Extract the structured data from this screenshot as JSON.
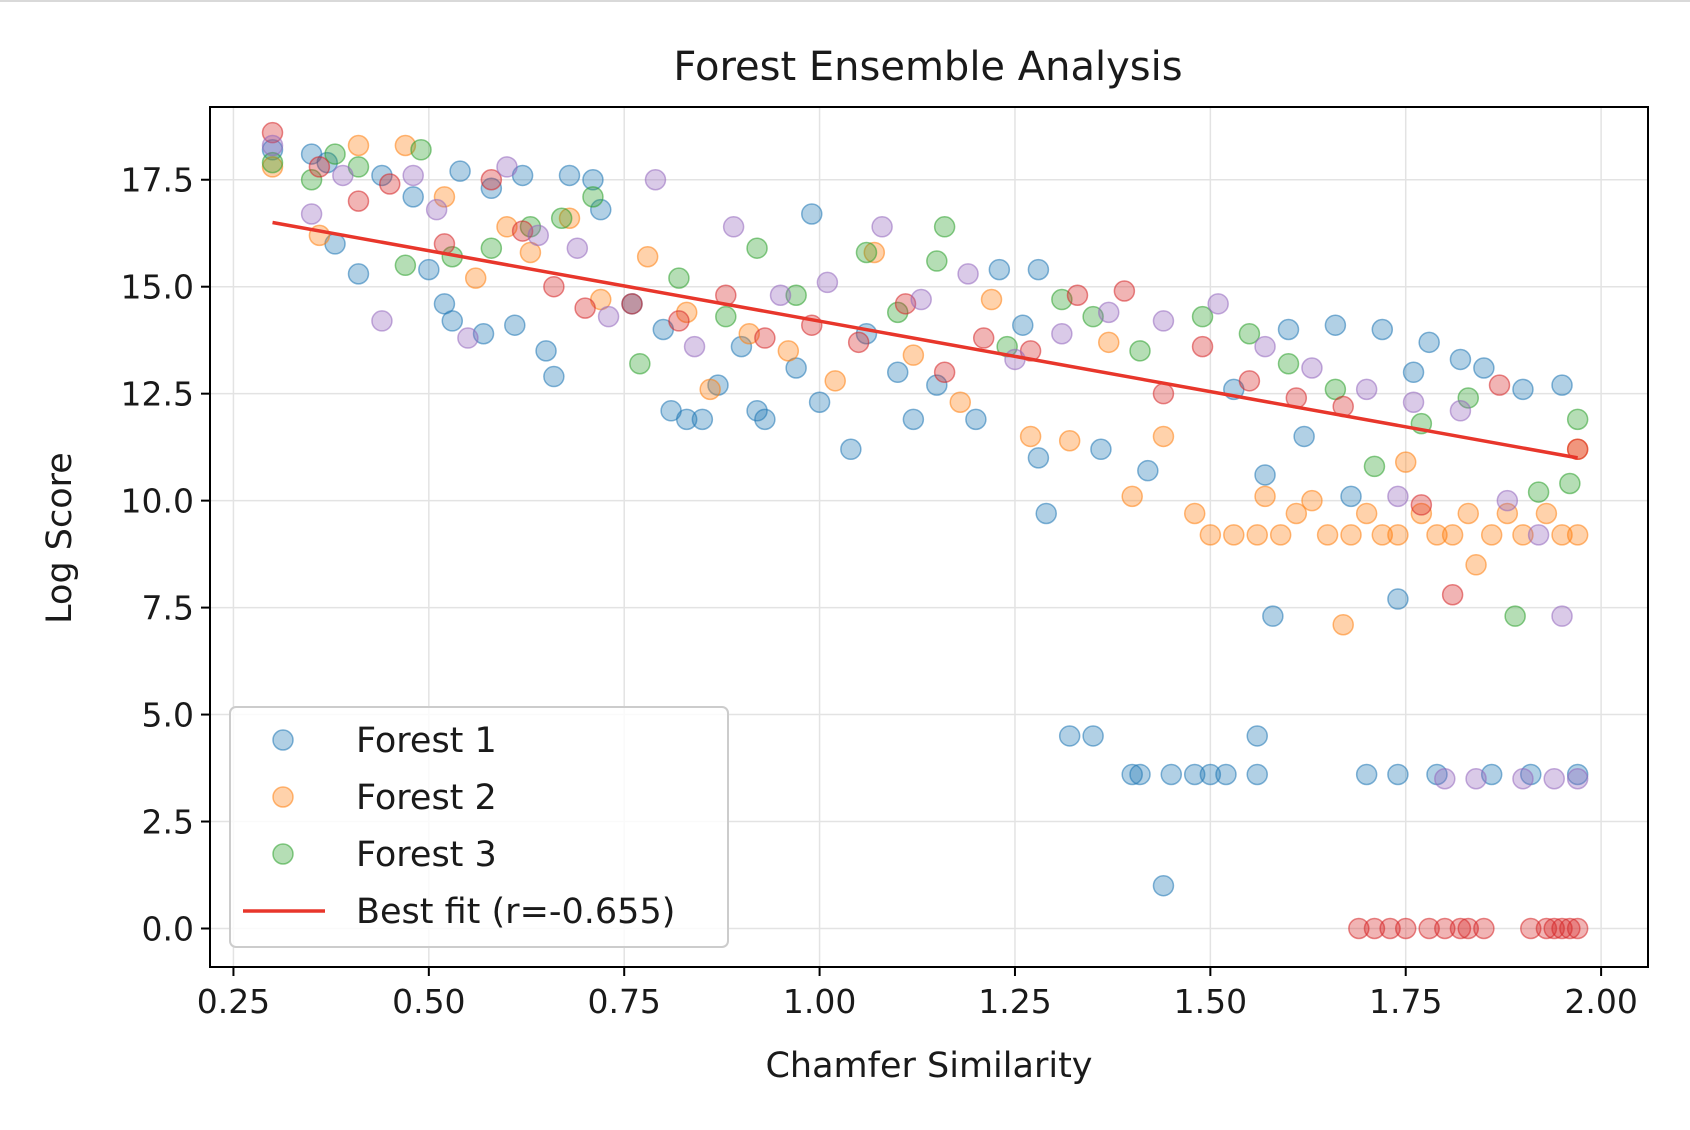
{
  "chart_data": {
    "type": "scatter",
    "title": "Forest Ensemble Analysis",
    "xlabel": "Chamfer Similarity",
    "ylabel": "Log Score",
    "xlim": [
      0.22,
      2.06
    ],
    "ylim": [
      -0.9,
      19.2
    ],
    "x_ticks": [
      0.25,
      0.5,
      0.75,
      1.0,
      1.25,
      1.5,
      1.75,
      2.0
    ],
    "x_tick_labels": [
      "0.25",
      "0.50",
      "0.75",
      "1.00",
      "1.25",
      "1.50",
      "1.75",
      "2.00"
    ],
    "y_ticks": [
      0.0,
      2.5,
      5.0,
      7.5,
      10.0,
      12.5,
      15.0,
      17.5
    ],
    "y_tick_labels": [
      "0.0",
      "2.5",
      "5.0",
      "7.5",
      "10.0",
      "12.5",
      "15.0",
      "17.5"
    ],
    "grid": true,
    "legend_position": "lower-left",
    "marker_alpha": 0.35,
    "series": [
      {
        "name": "Forest 1",
        "color": "#1f77b4",
        "points": [
          [
            0.3,
            18.2
          ],
          [
            0.35,
            18.1
          ],
          [
            0.37,
            17.9
          ],
          [
            0.38,
            16.0
          ],
          [
            0.41,
            15.3
          ],
          [
            0.44,
            17.6
          ],
          [
            0.48,
            17.1
          ],
          [
            0.5,
            15.4
          ],
          [
            0.52,
            14.6
          ],
          [
            0.53,
            14.2
          ],
          [
            0.54,
            17.7
          ],
          [
            0.57,
            13.9
          ],
          [
            0.58,
            17.3
          ],
          [
            0.61,
            14.1
          ],
          [
            0.62,
            17.6
          ],
          [
            0.65,
            13.5
          ],
          [
            0.66,
            12.9
          ],
          [
            0.68,
            17.6
          ],
          [
            0.71,
            17.5
          ],
          [
            0.72,
            16.8
          ],
          [
            0.76,
            14.6
          ],
          [
            0.8,
            14.0
          ],
          [
            0.81,
            12.1
          ],
          [
            0.83,
            11.9
          ],
          [
            0.85,
            11.9
          ],
          [
            0.87,
            12.7
          ],
          [
            0.9,
            13.6
          ],
          [
            0.92,
            12.1
          ],
          [
            0.93,
            11.9
          ],
          [
            0.97,
            13.1
          ],
          [
            0.99,
            16.7
          ],
          [
            1.0,
            12.3
          ],
          [
            1.04,
            11.2
          ],
          [
            1.06,
            13.9
          ],
          [
            1.1,
            13.0
          ],
          [
            1.12,
            11.9
          ],
          [
            1.15,
            12.7
          ],
          [
            1.2,
            11.9
          ],
          [
            1.23,
            15.4
          ],
          [
            1.26,
            14.1
          ],
          [
            1.28,
            15.4
          ],
          [
            1.28,
            11.0
          ],
          [
            1.29,
            9.7
          ],
          [
            1.32,
            4.5
          ],
          [
            1.35,
            4.5
          ],
          [
            1.36,
            11.2
          ],
          [
            1.4,
            3.6
          ],
          [
            1.41,
            3.6
          ],
          [
            1.42,
            10.7
          ],
          [
            1.44,
            1.0
          ],
          [
            1.45,
            3.6
          ],
          [
            1.48,
            3.6
          ],
          [
            1.5,
            3.6
          ],
          [
            1.52,
            3.6
          ],
          [
            1.53,
            12.6
          ],
          [
            1.56,
            4.5
          ],
          [
            1.56,
            3.6
          ],
          [
            1.57,
            10.6
          ],
          [
            1.58,
            7.3
          ],
          [
            1.6,
            14.0
          ],
          [
            1.62,
            11.5
          ],
          [
            1.66,
            14.1
          ],
          [
            1.68,
            10.1
          ],
          [
            1.7,
            3.6
          ],
          [
            1.72,
            14.0
          ],
          [
            1.74,
            7.7
          ],
          [
            1.74,
            3.6
          ],
          [
            1.76,
            13.0
          ],
          [
            1.78,
            13.7
          ],
          [
            1.79,
            3.6
          ],
          [
            1.82,
            13.3
          ],
          [
            1.85,
            13.1
          ],
          [
            1.86,
            3.6
          ],
          [
            1.9,
            12.6
          ],
          [
            1.91,
            3.6
          ],
          [
            1.95,
            12.7
          ],
          [
            1.97,
            3.6
          ]
        ]
      },
      {
        "name": "Forest 2",
        "color": "#ff7f0e",
        "points": [
          [
            0.3,
            17.8
          ],
          [
            0.36,
            16.2
          ],
          [
            0.41,
            18.3
          ],
          [
            0.47,
            18.3
          ],
          [
            0.52,
            17.1
          ],
          [
            0.56,
            15.2
          ],
          [
            0.6,
            16.4
          ],
          [
            0.63,
            15.8
          ],
          [
            0.68,
            16.6
          ],
          [
            0.72,
            14.7
          ],
          [
            0.78,
            15.7
          ],
          [
            0.83,
            14.4
          ],
          [
            0.86,
            12.6
          ],
          [
            0.91,
            13.9
          ],
          [
            0.96,
            13.5
          ],
          [
            1.02,
            12.8
          ],
          [
            1.07,
            15.8
          ],
          [
            1.12,
            13.4
          ],
          [
            1.18,
            12.3
          ],
          [
            1.22,
            14.7
          ],
          [
            1.27,
            11.5
          ],
          [
            1.32,
            11.4
          ],
          [
            1.37,
            13.7
          ],
          [
            1.4,
            10.1
          ],
          [
            1.44,
            11.5
          ],
          [
            1.48,
            9.7
          ],
          [
            1.5,
            9.2
          ],
          [
            1.53,
            9.2
          ],
          [
            1.56,
            9.2
          ],
          [
            1.57,
            10.1
          ],
          [
            1.59,
            9.2
          ],
          [
            1.61,
            9.7
          ],
          [
            1.63,
            10.0
          ],
          [
            1.65,
            9.2
          ],
          [
            1.67,
            7.1
          ],
          [
            1.68,
            9.2
          ],
          [
            1.7,
            9.7
          ],
          [
            1.72,
            9.2
          ],
          [
            1.74,
            9.2
          ],
          [
            1.75,
            10.9
          ],
          [
            1.77,
            9.7
          ],
          [
            1.79,
            9.2
          ],
          [
            1.81,
            9.2
          ],
          [
            1.83,
            9.7
          ],
          [
            1.84,
            8.5
          ],
          [
            1.86,
            9.2
          ],
          [
            1.88,
            9.7
          ],
          [
            1.9,
            9.2
          ],
          [
            1.93,
            9.7
          ],
          [
            1.95,
            9.2
          ],
          [
            1.97,
            9.2
          ],
          [
            1.97,
            11.2
          ]
        ]
      },
      {
        "name": "Forest 3",
        "color": "#2ca02c",
        "points": [
          [
            0.3,
            17.9
          ],
          [
            0.35,
            17.5
          ],
          [
            0.38,
            18.1
          ],
          [
            0.41,
            17.8
          ],
          [
            0.47,
            15.5
          ],
          [
            0.49,
            18.2
          ],
          [
            0.53,
            15.7
          ],
          [
            0.58,
            15.9
          ],
          [
            0.63,
            16.4
          ],
          [
            0.67,
            16.6
          ],
          [
            0.71,
            17.1
          ],
          [
            0.77,
            13.2
          ],
          [
            0.82,
            15.2
          ],
          [
            0.88,
            14.3
          ],
          [
            0.92,
            15.9
          ],
          [
            0.97,
            14.8
          ],
          [
            1.06,
            15.8
          ],
          [
            1.1,
            14.4
          ],
          [
            1.15,
            15.6
          ],
          [
            1.16,
            16.4
          ],
          [
            1.24,
            13.6
          ],
          [
            1.31,
            14.7
          ],
          [
            1.35,
            14.3
          ],
          [
            1.41,
            13.5
          ],
          [
            1.49,
            14.3
          ],
          [
            1.55,
            13.9
          ],
          [
            1.6,
            13.2
          ],
          [
            1.66,
            12.6
          ],
          [
            1.71,
            10.8
          ],
          [
            1.77,
            11.8
          ],
          [
            1.83,
            12.4
          ],
          [
            1.89,
            7.3
          ],
          [
            1.92,
            10.2
          ],
          [
            1.96,
            10.4
          ],
          [
            1.97,
            11.9
          ]
        ]
      },
      {
        "name": "",
        "color": "#d62728",
        "points": [
          [
            0.3,
            18.6
          ],
          [
            0.36,
            17.8
          ],
          [
            0.41,
            17.0
          ],
          [
            0.45,
            17.4
          ],
          [
            0.52,
            16.0
          ],
          [
            0.58,
            17.5
          ],
          [
            0.62,
            16.3
          ],
          [
            0.66,
            15.0
          ],
          [
            0.7,
            14.5
          ],
          [
            0.76,
            14.6
          ],
          [
            0.82,
            14.2
          ],
          [
            0.88,
            14.8
          ],
          [
            0.93,
            13.8
          ],
          [
            0.99,
            14.1
          ],
          [
            1.05,
            13.7
          ],
          [
            1.11,
            14.6
          ],
          [
            1.16,
            13.0
          ],
          [
            1.21,
            13.8
          ],
          [
            1.27,
            13.5
          ],
          [
            1.33,
            14.8
          ],
          [
            1.39,
            14.9
          ],
          [
            1.44,
            12.5
          ],
          [
            1.49,
            13.6
          ],
          [
            1.55,
            12.8
          ],
          [
            1.61,
            12.4
          ],
          [
            1.67,
            12.2
          ],
          [
            1.69,
            0.0
          ],
          [
            1.71,
            0.0
          ],
          [
            1.73,
            0.0
          ],
          [
            1.75,
            0.0
          ],
          [
            1.77,
            9.9
          ],
          [
            1.78,
            0.0
          ],
          [
            1.8,
            0.0
          ],
          [
            1.81,
            7.8
          ],
          [
            1.82,
            0.0
          ],
          [
            1.83,
            0.0
          ],
          [
            1.85,
            0.0
          ],
          [
            1.87,
            12.7
          ],
          [
            1.91,
            0.0
          ],
          [
            1.93,
            0.0
          ],
          [
            1.94,
            0.0
          ],
          [
            1.95,
            0.0
          ],
          [
            1.96,
            0.0
          ],
          [
            1.97,
            0.0
          ],
          [
            1.97,
            11.2
          ]
        ]
      },
      {
        "name": "",
        "color": "#9467bd",
        "points": [
          [
            0.3,
            18.3
          ],
          [
            0.35,
            16.7
          ],
          [
            0.39,
            17.6
          ],
          [
            0.44,
            14.2
          ],
          [
            0.48,
            17.6
          ],
          [
            0.51,
            16.8
          ],
          [
            0.55,
            13.8
          ],
          [
            0.6,
            17.8
          ],
          [
            0.64,
            16.2
          ],
          [
            0.69,
            15.9
          ],
          [
            0.73,
            14.3
          ],
          [
            0.79,
            17.5
          ],
          [
            0.84,
            13.6
          ],
          [
            0.89,
            16.4
          ],
          [
            0.95,
            14.8
          ],
          [
            1.01,
            15.1
          ],
          [
            1.08,
            16.4
          ],
          [
            1.13,
            14.7
          ],
          [
            1.19,
            15.3
          ],
          [
            1.25,
            13.3
          ],
          [
            1.31,
            13.9
          ],
          [
            1.37,
            14.4
          ],
          [
            1.44,
            14.2
          ],
          [
            1.51,
            14.6
          ],
          [
            1.57,
            13.6
          ],
          [
            1.63,
            13.1
          ],
          [
            1.7,
            12.6
          ],
          [
            1.74,
            10.1
          ],
          [
            1.76,
            12.3
          ],
          [
            1.8,
            3.5
          ],
          [
            1.82,
            12.1
          ],
          [
            1.84,
            3.5
          ],
          [
            1.88,
            10.0
          ],
          [
            1.9,
            3.5
          ],
          [
            1.92,
            9.2
          ],
          [
            1.94,
            3.5
          ],
          [
            1.95,
            7.3
          ],
          [
            1.97,
            3.5
          ]
        ]
      }
    ],
    "best_fit": {
      "label": "Best fit (r=-0.655)",
      "color": "#e8362b",
      "x": [
        0.3,
        1.97
      ],
      "y": [
        16.5,
        11.0
      ]
    }
  }
}
